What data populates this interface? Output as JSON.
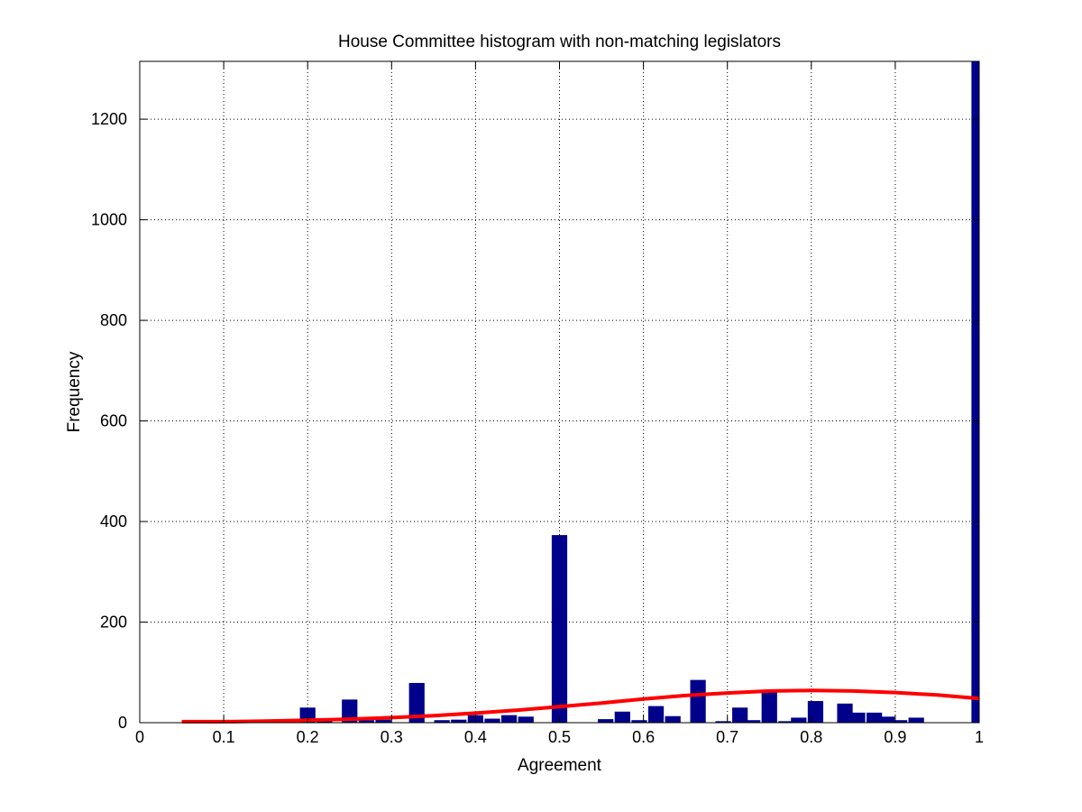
{
  "chart_data": {
    "type": "bar",
    "title": "House Committee  histogram with non-matching legislators",
    "xlabel": "Agreement",
    "ylabel": "Frequency",
    "xlim": [
      0,
      1
    ],
    "ylim": [
      0,
      1315
    ],
    "xticks": [
      0,
      0.1,
      0.2,
      0.3,
      0.4,
      0.5,
      0.6,
      0.7,
      0.8,
      0.9,
      1
    ],
    "xtick_labels": [
      "0",
      "0.1",
      "0.2",
      "0.3",
      "0.4",
      "0.5",
      "0.6",
      "0.7",
      "0.8",
      "0.9",
      "1"
    ],
    "yticks": [
      0,
      200,
      400,
      600,
      800,
      1000,
      1200
    ],
    "ytick_labels": [
      "0",
      "200",
      "400",
      "600",
      "800",
      "1000",
      "1200"
    ],
    "grid": true,
    "bar_color": "#00008B",
    "fit_color": "#FF0000",
    "bins": {
      "x": [
        0.17,
        0.2,
        0.22,
        0.25,
        0.27,
        0.29,
        0.33,
        0.36,
        0.38,
        0.4,
        0.42,
        0.44,
        0.46,
        0.5,
        0.555,
        0.575,
        0.595,
        0.615,
        0.635,
        0.665,
        0.695,
        0.715,
        0.73,
        0.75,
        0.77,
        0.785,
        0.805,
        0.84,
        0.855,
        0.875,
        0.89,
        0.905,
        0.925,
        1.0
      ],
      "values": [
        3,
        30,
        5,
        46,
        5,
        6,
        79,
        5,
        6,
        15,
        8,
        15,
        12,
        373,
        7,
        22,
        5,
        33,
        13,
        85,
        3,
        30,
        5,
        65,
        3,
        10,
        43,
        38,
        20,
        20,
        12,
        5,
        10,
        1315
      ]
    },
    "fit_curve": {
      "name": "fit",
      "x": [
        0.05,
        0.1,
        0.15,
        0.2,
        0.25,
        0.3,
        0.35,
        0.4,
        0.45,
        0.5,
        0.55,
        0.6,
        0.65,
        0.7,
        0.75,
        0.8,
        0.85,
        0.9,
        0.95,
        1.0
      ],
      "values": [
        2,
        2,
        3,
        5,
        7,
        10,
        14,
        19,
        25,
        32,
        39,
        47,
        54,
        59,
        63,
        64,
        63,
        60,
        55,
        48
      ]
    }
  }
}
